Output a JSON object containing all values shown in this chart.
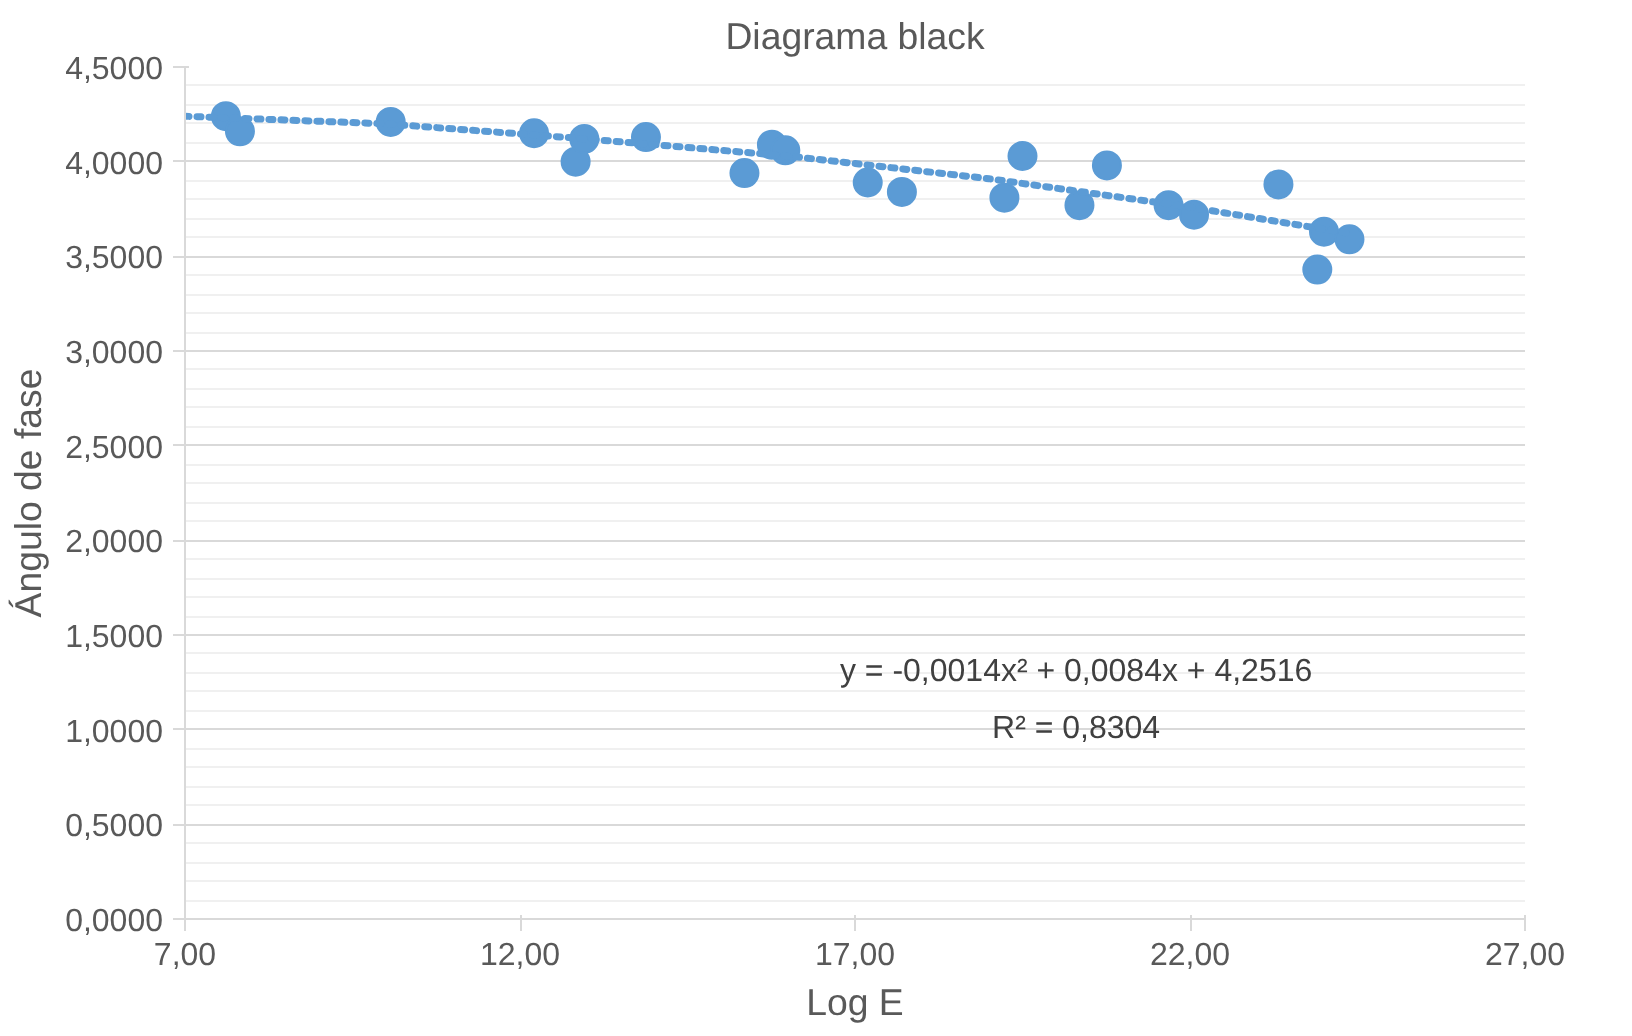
{
  "chart_data": {
    "type": "scatter",
    "title": "Diagrama black",
    "xlabel": "Log E",
    "ylabel": "Ángulo de fase",
    "xlim": [
      7,
      27
    ],
    "xticks": [
      {
        "value": 7,
        "label": "7,00"
      },
      {
        "value": 12,
        "label": "12,00"
      },
      {
        "value": 17,
        "label": "17,00"
      },
      {
        "value": 22,
        "label": "22,00"
      },
      {
        "value": 27,
        "label": "27,00"
      }
    ],
    "ylim": [
      0,
      4.5
    ],
    "yticks": [
      {
        "value": 0,
        "label": "0,0000"
      },
      {
        "value": 0.5,
        "label": "0,5000"
      },
      {
        "value": 1,
        "label": "1,0000"
      },
      {
        "value": 1.5,
        "label": "1,5000"
      },
      {
        "value": 2,
        "label": "2,0000"
      },
      {
        "value": 2.5,
        "label": "2,5000"
      },
      {
        "value": 3,
        "label": "3,0000"
      },
      {
        "value": 3.5,
        "label": "3,5000"
      },
      {
        "value": 4,
        "label": "4,0000"
      },
      {
        "value": 4.5,
        "label": "4,5000"
      }
    ],
    "grid": "y",
    "series": [
      {
        "marker": "circle",
        "color": "#5b9bd5",
        "x": [
          7.61,
          7.82,
          10.07,
          12.21,
          12.83,
          12.96,
          13.88,
          15.35,
          15.76,
          15.96,
          17.19,
          17.7,
          19.23,
          19.5,
          20.35,
          20.76,
          21.68,
          22.06,
          23.32,
          23.9,
          24.0,
          24.38
        ],
        "values": [
          4.24,
          4.16,
          4.21,
          4.15,
          4.0,
          4.12,
          4.13,
          3.94,
          4.09,
          4.06,
          3.89,
          3.84,
          3.81,
          4.03,
          3.77,
          3.98,
          3.77,
          3.72,
          3.88,
          3.43,
          3.63,
          3.59
        ]
      },
      {
        "type": "line",
        "line_style": "dotted",
        "color": "#5b9bd5",
        "x": [
          7,
          10,
          13,
          16,
          19,
          22,
          24.4
        ],
        "values": [
          4.24,
          4.2,
          4.12,
          4.03,
          3.91,
          3.76,
          3.62
        ]
      }
    ],
    "annotations": [
      "y = -0,0014x² + 0,0084x + 4,2516",
      "R² = 0,8304"
    ]
  }
}
